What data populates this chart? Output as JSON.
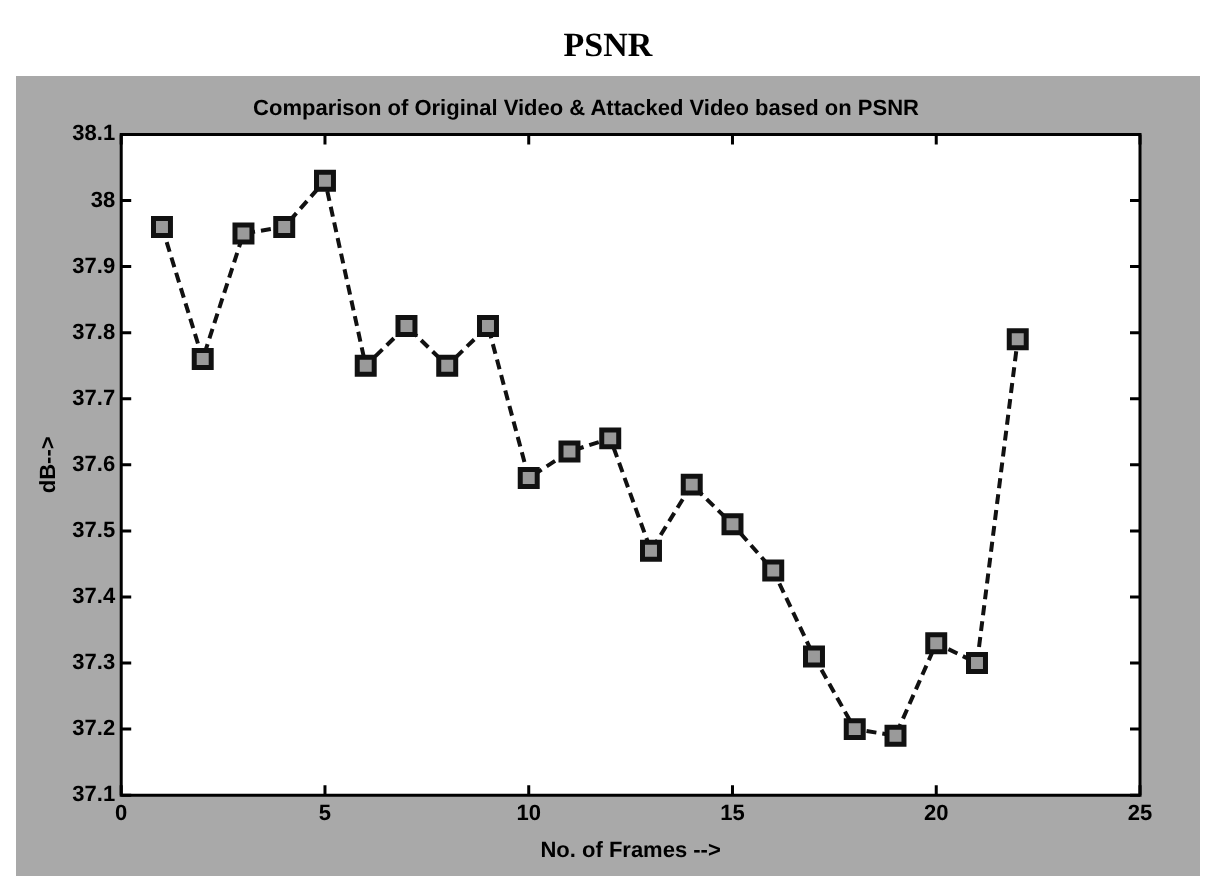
{
  "chart_data": {
    "type": "line",
    "title": "PSNR",
    "subtitle": "Comparison of Original Video & Attacked Video based on PSNR",
    "xlabel": "No. of Frames -->",
    "ylabel": "dB-->",
    "x": [
      1,
      2,
      3,
      4,
      5,
      6,
      7,
      8,
      9,
      10,
      11,
      12,
      13,
      14,
      15,
      16,
      17,
      18,
      19,
      20,
      21,
      22
    ],
    "series": [
      {
        "color": "#111111",
        "values": [
          37.96,
          37.76,
          37.95,
          37.96,
          38.03,
          37.75,
          37.81,
          37.75,
          37.81,
          37.58,
          37.62,
          37.64,
          37.47,
          37.57,
          37.51,
          37.44,
          37.31,
          37.2,
          37.19,
          37.33,
          37.3,
          37.79
        ]
      }
    ],
    "xlim": [
      0,
      25
    ],
    "xticks": [
      0,
      5,
      10,
      15,
      20,
      25
    ],
    "ylim": [
      37.1,
      38.1
    ],
    "yticks": [
      37.1,
      37.2,
      37.3,
      37.4,
      37.5,
      37.6,
      37.7,
      37.8,
      37.9,
      38,
      38.1
    ],
    "grid": false,
    "legend": false,
    "marker": "square",
    "line_style": "dashed"
  }
}
